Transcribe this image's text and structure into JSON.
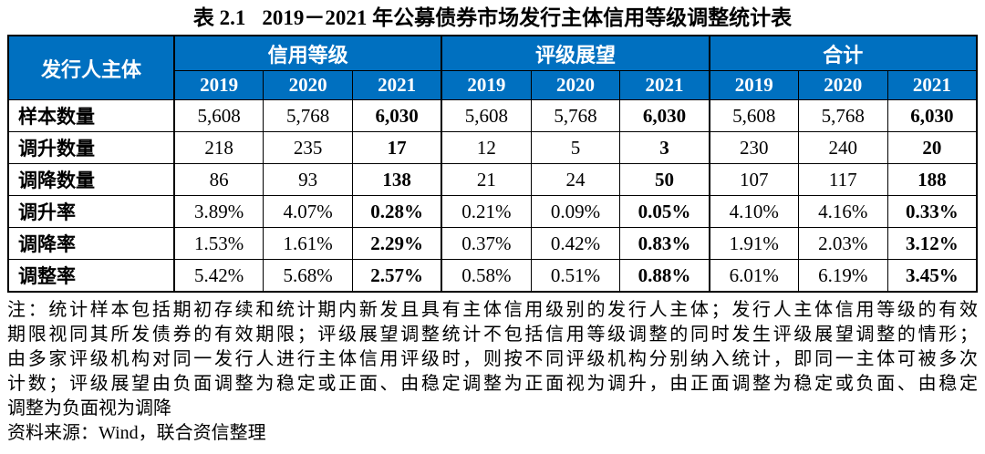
{
  "title": {
    "prefix": "表 2.1",
    "text": "2019－2021 年公募债券市场发行主体信用等级调整统计表"
  },
  "colors": {
    "header_bg": "#0070C0",
    "header_text": "#FFFFFF",
    "border": "#000000"
  },
  "table": {
    "corner_label": "发行人主体",
    "groups": [
      {
        "label": "信用等级",
        "years": [
          "2019",
          "2020",
          "2021"
        ]
      },
      {
        "label": "评级展望",
        "years": [
          "2019",
          "2020",
          "2021"
        ]
      },
      {
        "label": "合计",
        "years": [
          "2019",
          "2020",
          "2021"
        ]
      }
    ],
    "rows": [
      {
        "label": "样本数量",
        "values": [
          "5,608",
          "5,768",
          "6,030",
          "5,608",
          "5,768",
          "6,030",
          "5,608",
          "5,768",
          "6,030"
        ]
      },
      {
        "label": "调升数量",
        "values": [
          "218",
          "235",
          "17",
          "12",
          "5",
          "3",
          "230",
          "240",
          "20"
        ]
      },
      {
        "label": "调降数量",
        "values": [
          "86",
          "93",
          "138",
          "21",
          "24",
          "50",
          "107",
          "117",
          "188"
        ]
      },
      {
        "label": "调升率",
        "values": [
          "3.89%",
          "4.07%",
          "0.28%",
          "0.21%",
          "0.09%",
          "0.05%",
          "4.10%",
          "4.16%",
          "0.33%"
        ]
      },
      {
        "label": "调降率",
        "values": [
          "1.53%",
          "1.61%",
          "2.29%",
          "0.37%",
          "0.42%",
          "0.83%",
          "1.91%",
          "2.03%",
          "3.12%"
        ]
      },
      {
        "label": "调整率",
        "values": [
          "5.42%",
          "5.68%",
          "2.57%",
          "0.58%",
          "0.51%",
          "0.88%",
          "6.01%",
          "6.19%",
          "3.45%"
        ]
      }
    ]
  },
  "chart_data": {
    "type": "table",
    "title": "表 2.1 2019－2021 年公募债券市场发行主体信用等级调整统计表",
    "column_groups": [
      "信用等级",
      "评级展望",
      "合计"
    ],
    "years": [
      "2019",
      "2020",
      "2021"
    ],
    "row_headers": [
      "样本数量",
      "调升数量",
      "调降数量",
      "调升率",
      "调降率",
      "调整率"
    ],
    "credit_rating": {
      "2019": [
        "5,608",
        "218",
        "86",
        "3.89%",
        "1.53%",
        "5.42%"
      ],
      "2020": [
        "5,768",
        "235",
        "93",
        "4.07%",
        "1.61%",
        "5.68%"
      ],
      "2021": [
        "6,030",
        "17",
        "138",
        "0.28%",
        "2.29%",
        "2.57%"
      ]
    },
    "rating_outlook": {
      "2019": [
        "5,608",
        "12",
        "21",
        "0.21%",
        "0.37%",
        "0.58%"
      ],
      "2020": [
        "5,768",
        "5",
        "24",
        "0.09%",
        "0.42%",
        "0.51%"
      ],
      "2021": [
        "6,030",
        "3",
        "50",
        "0.05%",
        "0.83%",
        "0.88%"
      ]
    },
    "total": {
      "2019": [
        "5,608",
        "230",
        "107",
        "4.10%",
        "1.91%",
        "6.01%"
      ],
      "2020": [
        "5,768",
        "240",
        "117",
        "4.16%",
        "2.03%",
        "6.19%"
      ],
      "2021": [
        "6,030",
        "20",
        "188",
        "0.33%",
        "3.12%",
        "3.45%"
      ]
    }
  },
  "notes": {
    "lines": [
      "注：统计样本包括期初存续和统计期内新发且具有主体信用级别的发行人主体；发行人主体信用等级的有效",
      "期限视同其所发债券的有效期限；评级展望调整统计不包括信用等级调整的同时发生评级展望调整的情形；",
      "由多家评级机构对同一发行人进行主体信用评级时，则按不同评级机构分别纳入统计，即同一主体可被多次",
      "计数；评级展望由负面调整为稳定或正面、由稳定调整为正面视为调升，由正面调整为稳定或负面、由稳定",
      "调整为负面视为调降"
    ],
    "source": "资料来源：Wind，联合资信整理"
  }
}
